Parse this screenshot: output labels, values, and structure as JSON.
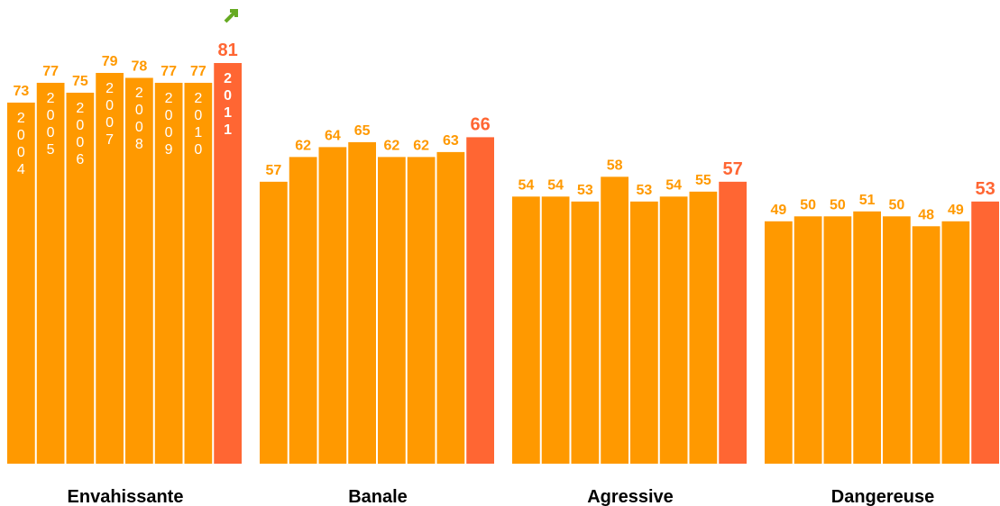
{
  "chart_data": {
    "type": "bar",
    "categories": [
      "Envahissante",
      "Banale",
      "Agressive",
      "Dangereuse"
    ],
    "series": [
      {
        "name": "2004",
        "color": "#FF9900",
        "values": [
          73,
          57,
          54,
          49
        ]
      },
      {
        "name": "2005",
        "color": "#FF9900",
        "values": [
          77,
          62,
          54,
          50
        ]
      },
      {
        "name": "2006",
        "color": "#FF9900",
        "values": [
          75,
          64,
          53,
          50
        ]
      },
      {
        "name": "2007",
        "color": "#FF9900",
        "values": [
          79,
          65,
          58,
          51
        ]
      },
      {
        "name": "2008",
        "color": "#FF9900",
        "values": [
          78,
          62,
          53,
          50
        ]
      },
      {
        "name": "2009",
        "color": "#FF9900",
        "values": [
          77,
          62,
          54,
          48
        ]
      },
      {
        "name": "2010",
        "color": "#FF9900",
        "values": [
          77,
          63,
          55,
          49
        ]
      },
      {
        "name": "2011",
        "color": "#FF6633",
        "values": [
          81,
          66,
          57,
          53
        ]
      }
    ]
  }
}
